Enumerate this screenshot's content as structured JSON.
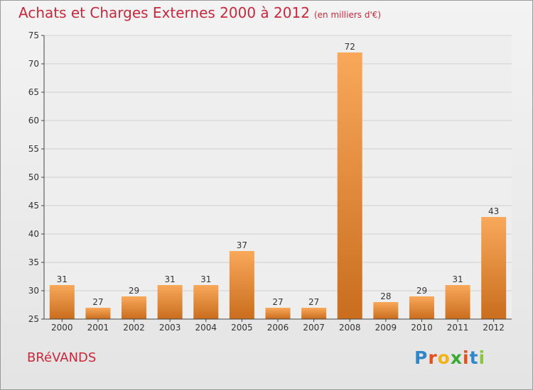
{
  "title": "Achats et Charges Externes 2000 à 2012",
  "units": "(en milliers d'€)",
  "commune": "BRéVANDS",
  "logo": {
    "letters": [
      "P",
      "r",
      "o",
      "x",
      "i",
      "t",
      "i"
    ],
    "colors": [
      "#2f86c8",
      "#e84e1b",
      "#f2b21a",
      "#3aa935",
      "#e84e1b",
      "#2f86c8",
      "#8cc63f"
    ]
  },
  "colors": {
    "bar_light": "#f9a85a",
    "bar_dark": "#c96d1e",
    "accent": "#c8283c"
  },
  "chart_data": {
    "type": "bar",
    "categories": [
      "2000",
      "2001",
      "2002",
      "2003",
      "2004",
      "2005",
      "2006",
      "2007",
      "2008",
      "2009",
      "2010",
      "2011",
      "2012"
    ],
    "values": [
      31,
      27,
      29,
      31,
      31,
      37,
      27,
      27,
      72,
      28,
      29,
      31,
      43
    ],
    "ylim": [
      25,
      75
    ],
    "yticks": [
      25,
      30,
      35,
      40,
      45,
      50,
      55,
      60,
      65,
      70,
      75
    ],
    "grid": true
  }
}
